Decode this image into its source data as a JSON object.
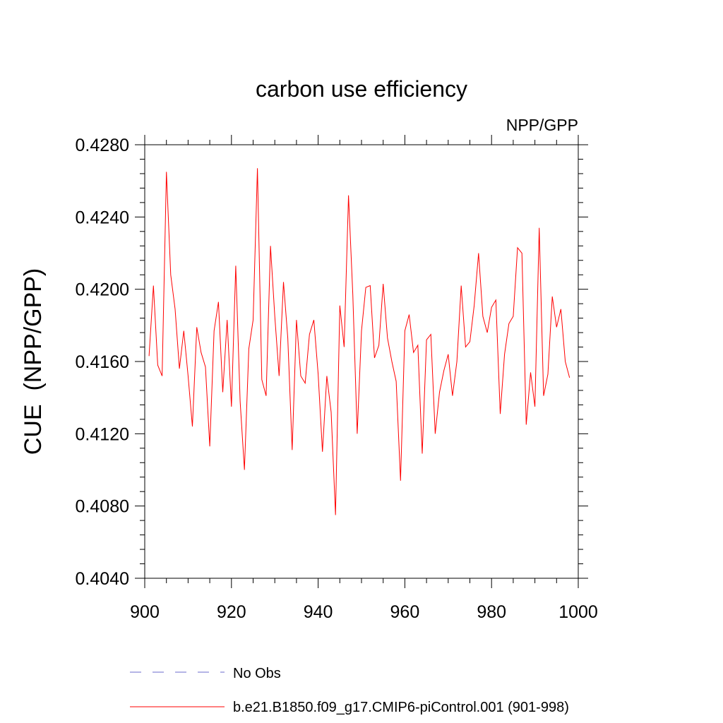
{
  "chart_data": {
    "type": "line",
    "title": "carbon use efficiency",
    "subtitle": "NPP/GPP",
    "xlabel": "",
    "ylabel": "CUE  (NPP/GPP)",
    "xlim": [
      900,
      1000
    ],
    "ylim": [
      0.404,
      0.428
    ],
    "x_ticks": [
      900,
      920,
      940,
      960,
      980,
      1000
    ],
    "y_ticks": [
      0.404,
      0.408,
      0.412,
      0.416,
      0.42,
      0.424,
      0.428
    ],
    "y_tick_labels": [
      "0.4040",
      "0.4080",
      "0.4120",
      "0.4160",
      "0.4200",
      "0.4240",
      "0.4280"
    ],
    "grid": false,
    "legend_position": "bottom",
    "series": [
      {
        "name": "b.e21.B1850.f09_g17.CMIP6-piControl.001 (901-998)",
        "color": "#ff0000",
        "style": "solid",
        "x": [
          901,
          902,
          903,
          904,
          905,
          906,
          907,
          908,
          909,
          910,
          911,
          912,
          913,
          914,
          915,
          916,
          917,
          918,
          919,
          920,
          921,
          922,
          923,
          924,
          925,
          926,
          927,
          928,
          929,
          930,
          931,
          932,
          933,
          934,
          935,
          936,
          937,
          938,
          939,
          940,
          941,
          942,
          943,
          944,
          945,
          946,
          947,
          948,
          949,
          950,
          951,
          952,
          953,
          954,
          955,
          956,
          957,
          958,
          959,
          960,
          961,
          962,
          963,
          964,
          965,
          966,
          967,
          968,
          969,
          970,
          971,
          972,
          973,
          974,
          975,
          976,
          977,
          978,
          979,
          980,
          981,
          982,
          983,
          984,
          985,
          986,
          987,
          988,
          989,
          990,
          991,
          992,
          993,
          994,
          995,
          996,
          997,
          998
        ],
        "values": [
          0.4163,
          0.4202,
          0.4158,
          0.4152,
          0.4265,
          0.4208,
          0.4189,
          0.4156,
          0.4177,
          0.4152,
          0.4124,
          0.4179,
          0.4165,
          0.4157,
          0.4113,
          0.4177,
          0.4193,
          0.4143,
          0.4183,
          0.4135,
          0.4213,
          0.4138,
          0.41,
          0.4167,
          0.4183,
          0.4267,
          0.415,
          0.4141,
          0.4224,
          0.4185,
          0.4152,
          0.4204,
          0.4173,
          0.4111,
          0.4183,
          0.4152,
          0.4148,
          0.4175,
          0.4183,
          0.4153,
          0.411,
          0.4152,
          0.4132,
          0.4075,
          0.4191,
          0.4168,
          0.4252,
          0.4197,
          0.412,
          0.4177,
          0.4201,
          0.4202,
          0.4162,
          0.4169,
          0.4203,
          0.4173,
          0.416,
          0.4149,
          0.4094,
          0.4177,
          0.4186,
          0.4165,
          0.4169,
          0.4109,
          0.4172,
          0.4175,
          0.412,
          0.4143,
          0.4155,
          0.4164,
          0.4141,
          0.416,
          0.4202,
          0.4168,
          0.4171,
          0.4191,
          0.422,
          0.4185,
          0.4176,
          0.419,
          0.4194,
          0.4131,
          0.4164,
          0.4181,
          0.4185,
          0.4223,
          0.422,
          0.4125,
          0.4154,
          0.4135,
          0.4234,
          0.4141,
          0.4153,
          0.4196,
          0.4179,
          0.4189,
          0.416,
          0.4151
        ]
      },
      {
        "name": "No Obs",
        "color": "#6b6bcc",
        "style": "dashed",
        "x": [],
        "values": []
      }
    ]
  }
}
